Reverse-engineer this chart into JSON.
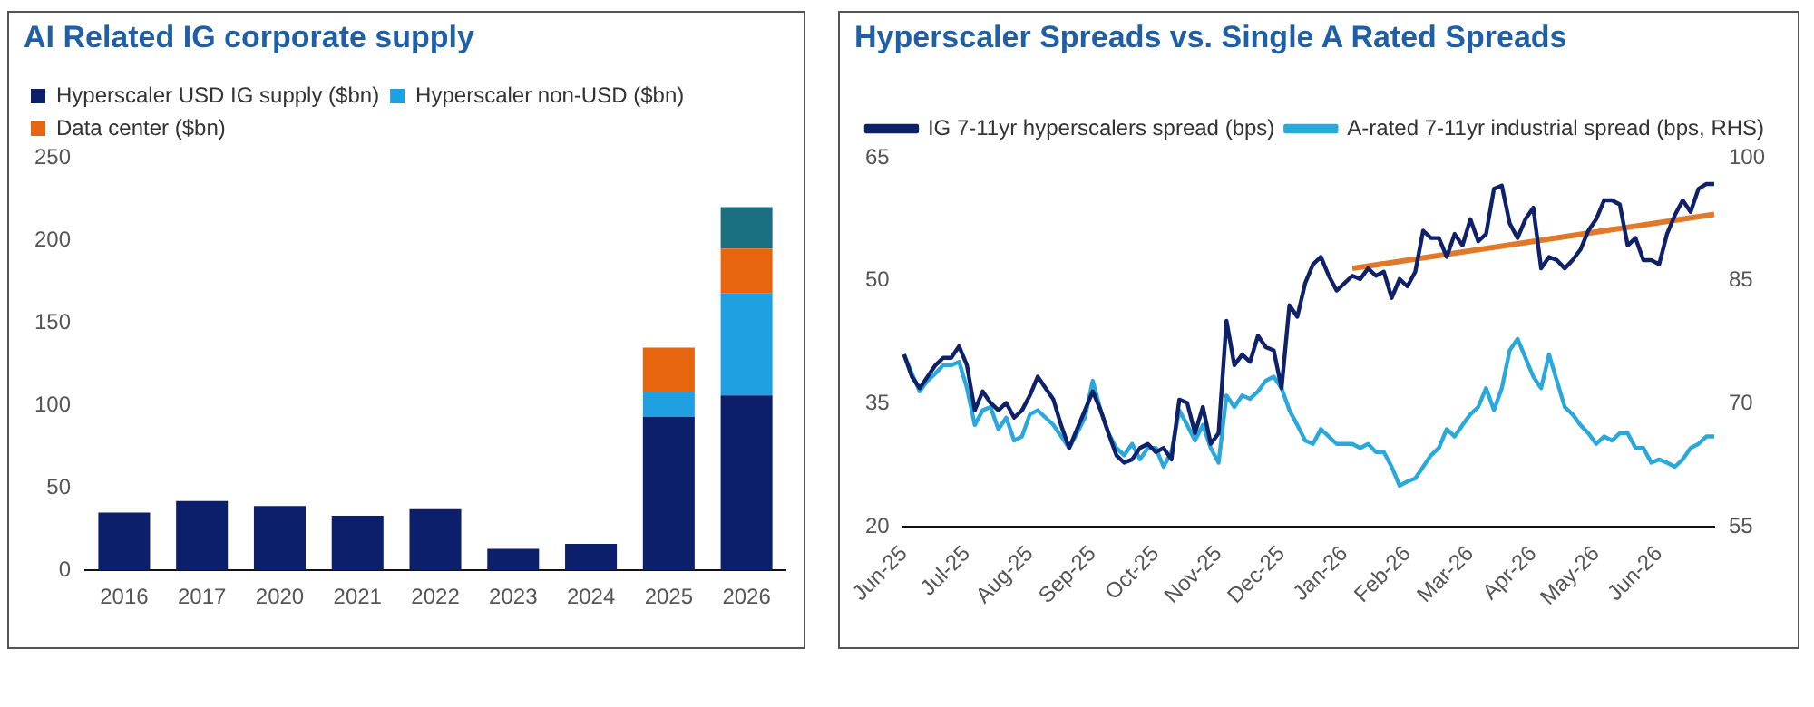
{
  "chart_data": [
    {
      "type": "bar",
      "title": "AI Related IG corporate supply",
      "stacked": true,
      "legend": "top left",
      "grid": false,
      "categories": [
        "2016",
        "2017",
        "2020",
        "2021",
        "2022",
        "2023",
        "2024",
        "2025",
        "2026"
      ],
      "ylim": [
        0,
        250
      ],
      "yticks": [
        0,
        50,
        100,
        150,
        200,
        250
      ],
      "series": [
        {
          "name": "Hyperscaler USD IG supply ($bn)",
          "color": "#0b1f6b",
          "values": [
            35,
            42,
            39,
            33,
            37,
            13,
            16,
            93,
            106
          ]
        },
        {
          "name": "Hyperscaler non-USD ($bn)",
          "color": "#1fa0e0",
          "values": [
            null,
            null,
            null,
            null,
            null,
            null,
            null,
            15,
            62
          ]
        },
        {
          "name": "Data center ($bn)",
          "color": "#e8650f",
          "values": [
            null,
            null,
            null,
            null,
            null,
            null,
            null,
            27,
            27
          ]
        },
        {
          "color": "#1a6f80",
          "values": [
            null,
            null,
            null,
            null,
            null,
            null,
            null,
            null,
            25
          ]
        }
      ]
    },
    {
      "type": "line",
      "title": "Hyperscaler Spreads vs. Single A Rated Spreads",
      "legend": "top",
      "grid": false,
      "marker": "none",
      "line_style": "solid",
      "categories": [
        "Jun-25",
        null,
        null,
        null,
        null,
        null,
        null,
        null,
        "Jul-25",
        null,
        null,
        null,
        null,
        null,
        null,
        null,
        "Aug-25",
        null,
        null,
        null,
        null,
        null,
        null,
        null,
        "Sep-25",
        null,
        null,
        null,
        null,
        null,
        null,
        null,
        "Oct-25",
        null,
        null,
        null,
        null,
        null,
        null,
        null,
        "Nov-25",
        null,
        null,
        null,
        null,
        null,
        null,
        null,
        "Dec-25",
        null,
        null,
        null,
        null,
        null,
        null,
        null,
        "Jan-26",
        null,
        null,
        null,
        null,
        null,
        null,
        null,
        "Feb-26",
        null,
        null,
        null,
        null,
        null,
        null,
        null,
        "Mar-26",
        null,
        null,
        null,
        null,
        null,
        null,
        null,
        "Apr-26",
        null,
        null,
        null,
        null,
        null,
        null,
        null,
        "May-26",
        null,
        null,
        null,
        null,
        null,
        null,
        null,
        "Jun-26",
        null,
        null,
        null,
        null,
        null,
        null,
        null
      ],
      "ylim": [
        20,
        65
      ],
      "yticks": [
        20,
        35,
        50,
        65
      ],
      "y2lim": [
        55,
        100
      ],
      "y2ticks": [
        55,
        70,
        85,
        100
      ],
      "series": [
        {
          "name": "IG 7-11yr hyperscalers spread (bps)",
          "color": "#0f2169",
          "values": [
            41.0,
            38.3,
            36.9,
            38.3,
            39.7,
            40.6,
            40.6,
            42.0,
            39.7,
            34.2,
            36.5,
            35.1,
            34.2,
            35.1,
            33.3,
            34.2,
            36.0,
            38.3,
            36.9,
            35.5,
            32.3,
            29.6,
            31.9,
            34.2,
            36.5,
            34.2,
            31.4,
            28.7,
            27.8,
            28.2,
            29.6,
            30.1,
            29.1,
            29.6,
            28.2,
            35.5,
            35.1,
            31.4,
            34.6,
            30.1,
            31.4,
            45.1,
            39.7,
            41.0,
            40.1,
            43.3,
            41.9,
            41.5,
            36.9,
            47.0,
            45.6,
            49.7,
            52.0,
            52.9,
            50.6,
            48.8,
            49.7,
            50.6,
            50.2,
            51.5,
            50.6,
            51.1,
            47.9,
            50.2,
            49.3,
            51.1,
            56.1,
            55.2,
            55.2,
            52.9,
            55.7,
            54.3,
            57.5,
            54.8,
            55.7,
            61.2,
            61.6,
            57.0,
            55.2,
            57.5,
            58.9,
            51.5,
            52.9,
            52.5,
            51.5,
            52.5,
            53.8,
            56.1,
            57.5,
            59.8,
            59.8,
            59.3,
            54.3,
            55.2,
            52.5,
            52.5,
            52.0,
            55.7,
            58.0,
            59.8,
            58.4,
            61.2,
            61.8,
            61.8
          ]
        },
        {
          "name": "A-rated 7-11yr industrial spread (bps, RHS)",
          "color": "#2aa8dc",
          "axis": "y2",
          "values": [
            76.0,
            73.7,
            71.5,
            72.8,
            73.7,
            74.7,
            74.7,
            75.1,
            71.9,
            67.4,
            69.2,
            69.6,
            66.9,
            68.3,
            65.5,
            66.0,
            68.7,
            69.2,
            68.3,
            67.4,
            66.0,
            64.6,
            66.4,
            68.3,
            72.8,
            69.2,
            66.4,
            64.6,
            63.7,
            65.1,
            63.2,
            64.6,
            64.6,
            62.3,
            64.1,
            69.2,
            67.4,
            65.5,
            67.4,
            64.6,
            62.8,
            71.0,
            69.6,
            71.0,
            70.6,
            71.5,
            72.8,
            73.3,
            71.9,
            69.2,
            67.4,
            65.5,
            65.1,
            66.9,
            66.0,
            65.1,
            65.1,
            65.1,
            64.6,
            65.1,
            64.1,
            64.1,
            62.3,
            60.0,
            60.5,
            60.9,
            62.3,
            63.7,
            64.6,
            66.9,
            66.0,
            67.4,
            68.7,
            69.6,
            71.9,
            69.2,
            71.9,
            76.5,
            77.9,
            75.6,
            73.3,
            71.9,
            76.0,
            72.8,
            69.6,
            68.7,
            67.4,
            66.4,
            65.1,
            66.0,
            65.5,
            66.4,
            66.4,
            64.6,
            64.6,
            62.8,
            63.2,
            62.8,
            62.3,
            63.2,
            64.6,
            65.1,
            66.0,
            66.0
          ]
        },
        {
          "type": "line",
          "color": "#e07a2a",
          "values": [
            null,
            null,
            null,
            null,
            null,
            null,
            null,
            null,
            null,
            null,
            null,
            null,
            null,
            null,
            null,
            null,
            null,
            null,
            null,
            null,
            null,
            null,
            null,
            null,
            null,
            null,
            null,
            null,
            null,
            null,
            null,
            null,
            null,
            null,
            null,
            null,
            null,
            null,
            null,
            null,
            null,
            null,
            null,
            null,
            null,
            null,
            null,
            null,
            null,
            null,
            null,
            null,
            null,
            null,
            null,
            null,
            null,
            51.5,
            null,
            null,
            null,
            null,
            null,
            null,
            null,
            null,
            null,
            null,
            null,
            null,
            null,
            null,
            null,
            null,
            null,
            null,
            null,
            null,
            null,
            null,
            null,
            null,
            null,
            null,
            null,
            null,
            null,
            null,
            null,
            null,
            null,
            null,
            null,
            null,
            null,
            null,
            null,
            null,
            null,
            null,
            null,
            null,
            null,
            58.1
          ]
        }
      ]
    }
  ]
}
